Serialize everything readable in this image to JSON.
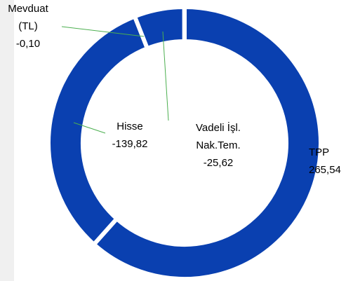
{
  "chart_data": {
    "type": "donut",
    "categories": [
      "TPP",
      "Hisse",
      "Vadeli İşl. Nak.Tem.",
      "Mevduat (TL)"
    ],
    "values": [
      265.54,
      -139.82,
      -25.62,
      -0.1
    ],
    "value_labels": [
      "265,54",
      "-139,82",
      "-25,62",
      "-0,10"
    ],
    "color": "#0a40b0"
  }
}
